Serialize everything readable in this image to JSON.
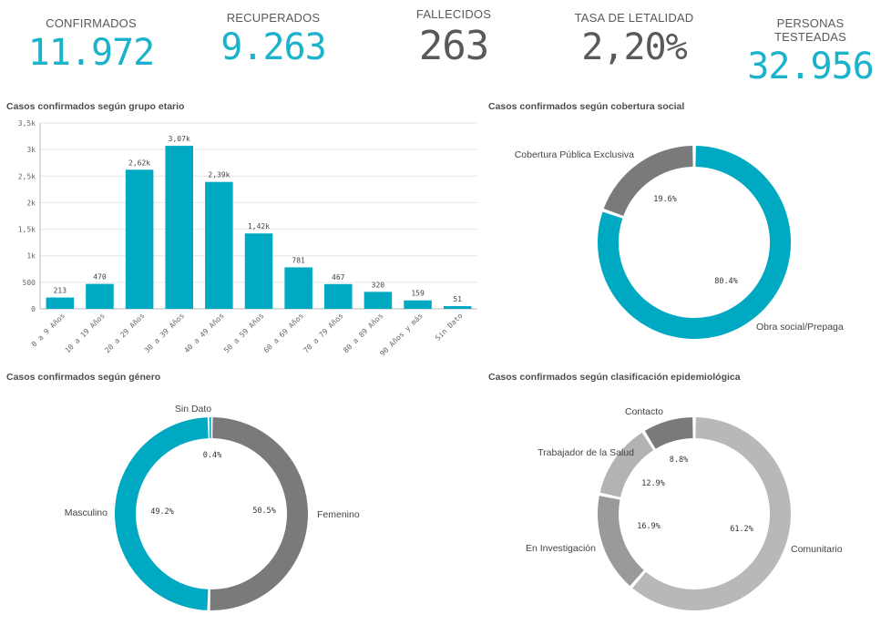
{
  "colors": {
    "accent": "#00a9c2",
    "grey_dark": "#7a7a7a",
    "grey_mid": "#9a9a9a",
    "grey_light": "#b8b8b8"
  },
  "kpis": [
    {
      "label": "CONFIRMADOS",
      "value": "11.972",
      "color": "#1bb3cc"
    },
    {
      "label": "RECUPERADOS",
      "value": "9.263",
      "color": "#1bb3cc"
    },
    {
      "label": "FALLECIDOS",
      "value": "263",
      "color": "#595959"
    },
    {
      "label": "TASA DE LETALIDAD",
      "value": "2,20%",
      "color": "#595959"
    },
    {
      "label": "PERSONAS TESTEADAS",
      "value": "32.956",
      "color": "#1bb3cc"
    }
  ],
  "panels": {
    "age_title": "Casos confirmados según grupo etario",
    "coverage_title": "Casos confirmados según cobertura social",
    "gender_title": "Casos confirmados según género",
    "epi_title": "Casos confirmados según clasificación epidemiológica"
  },
  "chart_data": [
    {
      "type": "bar",
      "title": "Casos confirmados según grupo etario",
      "categories": [
        "0 a 9 Años",
        "10 a 19 Años",
        "20 a 29 Años",
        "30 a 39 Años",
        "40 a 49 Años",
        "50 a 59 Años",
        "60 a 69 Años",
        "70 a 79 Años",
        "80 a 89 Años",
        "90 Años y más",
        "Sin Dato"
      ],
      "values": [
        213,
        470,
        2620,
        3070,
        2390,
        1420,
        781,
        467,
        320,
        159,
        51
      ],
      "data_labels": [
        "213",
        "470",
        "2,62k",
        "3,07k",
        "2,39k",
        "1,42k",
        "781",
        "467",
        "320",
        "159",
        "51"
      ],
      "ylim": [
        0,
        3500
      ],
      "yticks": [
        0,
        500,
        1000,
        1500,
        2000,
        2500,
        3000,
        3500
      ],
      "ytick_labels": [
        "0",
        "500",
        "1k",
        "1,5k",
        "2k",
        "2,5k",
        "3k",
        "3,5k"
      ],
      "grid": true,
      "color": "#00a9c2"
    },
    {
      "type": "pie",
      "title": "Casos confirmados según cobertura social",
      "labels": [
        "Obra social/Prepaga",
        "Cobertura Pública Exclusiva"
      ],
      "values": [
        80.4,
        19.6
      ],
      "pct_labels": [
        "80.4%",
        "19.6%"
      ],
      "colors": [
        "#00a9c2",
        "#7a7a7a"
      ]
    },
    {
      "type": "pie",
      "title": "Casos confirmados según género",
      "labels": [
        "Femenino",
        "Masculino",
        "Sin Dato"
      ],
      "values": [
        50.5,
        49.2,
        0.4
      ],
      "pct_labels": [
        "50.5%",
        "49.2%",
        "0.4%"
      ],
      "colors": [
        "#7a7a7a",
        "#00a9c2",
        "#00a9c2"
      ]
    },
    {
      "type": "pie",
      "title": "Casos confirmados según clasificación epidemiológica",
      "labels": [
        "Comunitario",
        "En Investigación",
        "Trabajador de la Salud",
        "Contacto"
      ],
      "values": [
        61.2,
        16.9,
        12.9,
        8.8
      ],
      "pct_labels": [
        "61.2%",
        "16.9%",
        "12.9%",
        "8.8%"
      ],
      "colors": [
        "#b8b8b8",
        "#9a9a9a",
        "#b3b3b3",
        "#7a7a7a"
      ]
    }
  ]
}
